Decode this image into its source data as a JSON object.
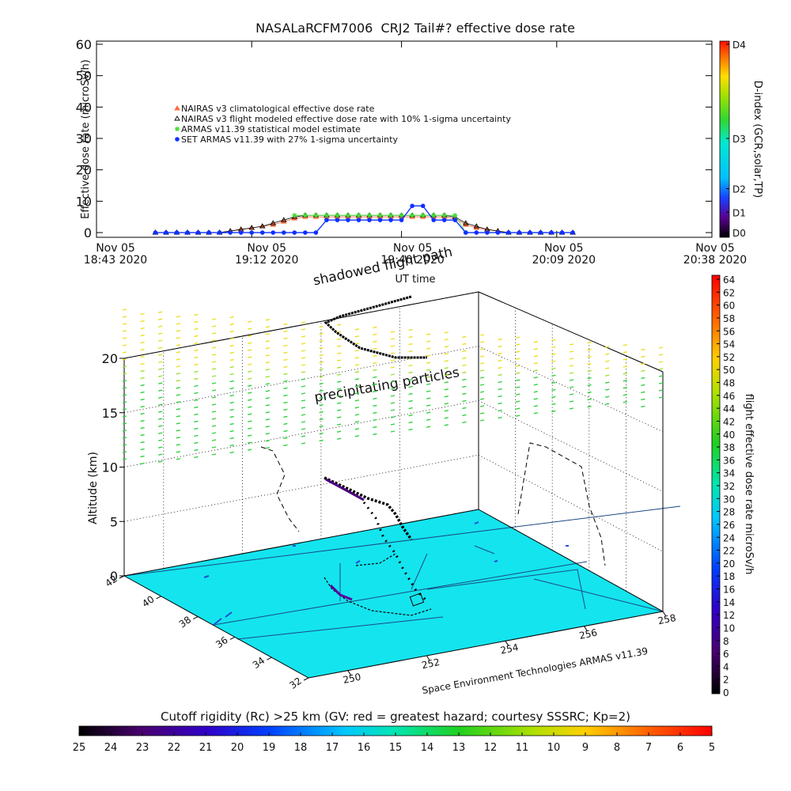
{
  "chart_data": {
    "type": "line",
    "title": "NASALaRCFM7006  CRJ2 Tail#? effective dose rate",
    "ylabel": "Effective dose rate (microSv/h)",
    "xlabel": "UT time",
    "xlim": [
      "2020-11-05 18:43",
      "2020-11-05 20:38"
    ],
    "xticks": [
      {
        "value": "2020-11-05 18:43",
        "label": [
          "Nov 05",
          "18:43 2020"
        ]
      },
      {
        "value": "2020-11-05 19:12",
        "label": [
          "Nov 05",
          "19:12 2020"
        ]
      },
      {
        "value": "2020-11-05 19:40",
        "label": [
          "Nov 05",
          "19:40 2020"
        ]
      },
      {
        "value": "2020-11-05 20:09",
        "label": [
          "Nov 05",
          "20:09 2020"
        ]
      },
      {
        "value": "2020-11-05 20:38",
        "label": [
          "Nov 05",
          "20:38 2020"
        ]
      }
    ],
    "ylim": [
      -1.5,
      61
    ],
    "yticks": [
      0,
      10,
      20,
      30,
      40,
      50,
      60
    ],
    "x": [
      "2020-11-05 18:54",
      "2020-11-05 18:56",
      "2020-11-05 18:58",
      "2020-11-05 19:00",
      "2020-11-05 19:02",
      "2020-11-05 19:04",
      "2020-11-05 19:06",
      "2020-11-05 19:08",
      "2020-11-05 19:10",
      "2020-11-05 19:12",
      "2020-11-05 19:14",
      "2020-11-05 19:16",
      "2020-11-05 19:18",
      "2020-11-05 19:20",
      "2020-11-05 19:22",
      "2020-11-05 19:24",
      "2020-11-05 19:26",
      "2020-11-05 19:28",
      "2020-11-05 19:30",
      "2020-11-05 19:32",
      "2020-11-05 19:34",
      "2020-11-05 19:36",
      "2020-11-05 19:38",
      "2020-11-05 19:40",
      "2020-11-05 19:42",
      "2020-11-05 19:44",
      "2020-11-05 19:46",
      "2020-11-05 19:48",
      "2020-11-05 19:50",
      "2020-11-05 19:52",
      "2020-11-05 19:54",
      "2020-11-05 19:56",
      "2020-11-05 19:58",
      "2020-11-05 20:00",
      "2020-11-05 20:02",
      "2020-11-05 20:04",
      "2020-11-05 20:06",
      "2020-11-05 20:08",
      "2020-11-05 20:10",
      "2020-11-05 20:12"
    ],
    "series": [
      {
        "name": "NAIRAS v3 climatological effective dose rate",
        "color": "#ff6a3a",
        "marker": "triangle",
        "values": [
          0,
          0,
          0,
          0,
          0,
          0,
          0,
          0.5,
          1,
          1.5,
          2,
          2.5,
          3.5,
          4.5,
          5,
          5,
          5,
          5,
          5,
          5,
          5,
          5,
          5,
          5,
          5,
          5,
          5,
          5,
          4.5,
          2.5,
          1.5,
          1,
          0.5,
          0,
          0,
          0,
          0,
          0,
          0,
          0
        ]
      },
      {
        "name": "NAIRAS v3 flight modeled effective dose rate with 10% 1-sigma uncertainty",
        "color": "#000000",
        "marker": "triangle-open",
        "values": [
          0,
          0,
          0,
          0,
          0,
          0,
          0,
          0.5,
          1,
          1.5,
          2,
          3,
          4,
          5,
          5.5,
          5.5,
          5.5,
          5.5,
          5.5,
          5.5,
          5.5,
          5.5,
          5.5,
          5.5,
          5.5,
          5.5,
          5.5,
          5.5,
          5,
          3,
          2,
          1,
          0.5,
          0,
          0,
          0,
          0,
          0,
          0,
          0
        ]
      },
      {
        "name": "ARMAS v11.39 statistical model estimate",
        "color": "#44dd33",
        "marker": "asterisk",
        "values": [
          null,
          null,
          null,
          null,
          null,
          null,
          null,
          null,
          null,
          null,
          null,
          null,
          null,
          5.5,
          5.5,
          5.5,
          5.5,
          5.5,
          5.5,
          5.5,
          5.5,
          5.5,
          5.5,
          5.5,
          5.5,
          5.5,
          5.5,
          5.5,
          5.5,
          0,
          null,
          null,
          null,
          null,
          null,
          null,
          null,
          null,
          null,
          null
        ]
      },
      {
        "name": "SET ARMAS v11.39 with 27% 1-sigma uncertainty",
        "color": "#1030ff",
        "marker": "circle",
        "values": [
          0,
          0,
          0,
          0,
          0,
          0,
          0,
          0,
          0,
          0,
          0,
          0,
          0,
          0,
          0,
          0,
          4,
          4,
          4,
          4,
          4,
          4,
          4,
          4,
          8.5,
          8.5,
          4,
          4,
          4,
          0,
          0,
          0,
          0,
          0,
          0,
          0,
          0,
          0,
          0,
          0
        ]
      }
    ]
  },
  "dindex": {
    "title": "D-index (GCR,solar,TP)",
    "ticks": [
      {
        "value": 0,
        "label": "D0"
      },
      {
        "value": 6.5,
        "label": "D1"
      },
      {
        "value": 14,
        "label": "D2"
      },
      {
        "value": 30,
        "label": "D3"
      },
      {
        "value": 60,
        "label": "D4"
      }
    ]
  },
  "panel_3d": {
    "zlabel": "Altitude (km)",
    "zlim": [
      0,
      20
    ],
    "zticks": [
      0,
      5,
      10,
      15,
      20
    ],
    "lat_lim": [
      42,
      32
    ],
    "lat_ticks": [
      42,
      40,
      38,
      36,
      34,
      32
    ],
    "lon_lim": [
      249,
      258
    ],
    "lon_ticks": [
      250,
      252,
      254,
      256,
      258
    ],
    "annotations": [
      "shadowed flight path",
      "precipitating particles"
    ],
    "credit": "Space Environment Technologies ARMAS v11.39"
  },
  "dose_colorbar": {
    "title": "flight effective dose rate microSv/h",
    "lim": [
      0,
      64
    ],
    "ticks": [
      0,
      2,
      4,
      6,
      8,
      10,
      12,
      14,
      16,
      18,
      20,
      22,
      24,
      26,
      28,
      30,
      32,
      34,
      36,
      38,
      40,
      42,
      44,
      46,
      48,
      50,
      52,
      54,
      56,
      58,
      60,
      62,
      64
    ]
  },
  "rigidity_colorbar": {
    "title": "Cutoff rigidity (Rc) >25 km (GV: red = greatest hazard; courtesy SSSRC; Kp=2)",
    "lim": [
      25,
      5
    ],
    "ticks": [
      25,
      24,
      23,
      22,
      21,
      20,
      19,
      18,
      17,
      16,
      15,
      14,
      13,
      12,
      11,
      10,
      9,
      8,
      7,
      6,
      5
    ]
  }
}
